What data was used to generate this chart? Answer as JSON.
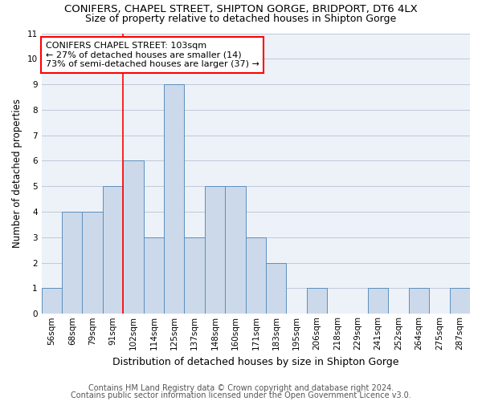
{
  "title": "CONIFERS, CHAPEL STREET, SHIPTON GORGE, BRIDPORT, DT6 4LX",
  "subtitle": "Size of property relative to detached houses in Shipton Gorge",
  "xlabel": "Distribution of detached houses by size in Shipton Gorge",
  "ylabel": "Number of detached properties",
  "categories": [
    "56sqm",
    "68sqm",
    "79sqm",
    "91sqm",
    "102sqm",
    "114sqm",
    "125sqm",
    "137sqm",
    "148sqm",
    "160sqm",
    "171sqm",
    "183sqm",
    "195sqm",
    "206sqm",
    "218sqm",
    "229sqm",
    "241sqm",
    "252sqm",
    "264sqm",
    "275sqm",
    "287sqm"
  ],
  "values": [
    1,
    4,
    4,
    5,
    6,
    3,
    9,
    3,
    5,
    5,
    3,
    2,
    0,
    1,
    0,
    0,
    1,
    0,
    1,
    0,
    1
  ],
  "bar_color": "#ccd9ea",
  "bar_edge_color": "#5b8fbe",
  "vline_x_index": 4,
  "vline_color": "red",
  "annotation_line1": "CONIFERS CHAPEL STREET: 103sqm",
  "annotation_line2": "← 27% of detached houses are smaller (14)",
  "annotation_line3": "73% of semi-detached houses are larger (37) →",
  "annotation_box_color": "white",
  "annotation_box_edge_color": "red",
  "ylim": [
    0,
    11
  ],
  "yticks": [
    0,
    1,
    2,
    3,
    4,
    5,
    6,
    7,
    8,
    9,
    10,
    11
  ],
  "footer1": "Contains HM Land Registry data © Crown copyright and database right 2024.",
  "footer2": "Contains public sector information licensed under the Open Government Licence v3.0.",
  "bg_color": "#edf2f9",
  "grid_color": "#c0c8d8",
  "title_fontsize": 9.5,
  "subtitle_fontsize": 9,
  "ylabel_fontsize": 8.5,
  "xlabel_fontsize": 9,
  "tick_fontsize": 7.5,
  "annotation_fontsize": 8,
  "footer_fontsize": 7
}
